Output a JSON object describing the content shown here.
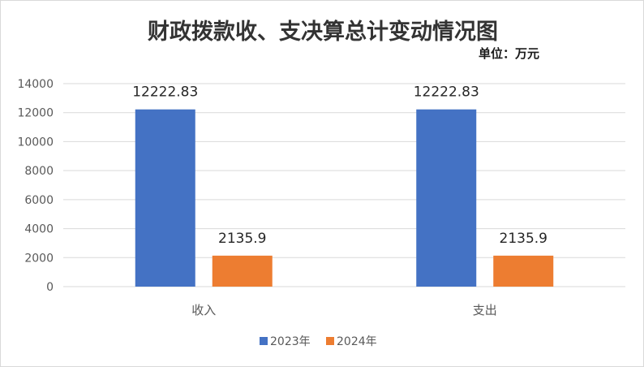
{
  "chart_data": {
    "type": "bar",
    "title": "财政拨款收、支决算总计变动情况图",
    "unit_label": "单位：万元",
    "categories": [
      "收入",
      "支出"
    ],
    "series": [
      {
        "name": "2023年",
        "values": [
          12222.83,
          12222.83
        ],
        "labels": [
          "12222.83",
          "12222.83"
        ],
        "color": "#4472c4"
      },
      {
        "name": "2024年",
        "values": [
          2135.9,
          2135.9
        ],
        "labels": [
          "2135.9",
          "2135.9"
        ],
        "color": "#ed7d31"
      }
    ],
    "ylim": [
      0,
      14000
    ],
    "yticks": [
      0,
      2000,
      4000,
      6000,
      8000,
      10000,
      12000,
      14000
    ],
    "grid": true,
    "legend_position": "bottom",
    "gridline_color": "#d9d9d9",
    "axis_color": "#d9d9d9"
  }
}
